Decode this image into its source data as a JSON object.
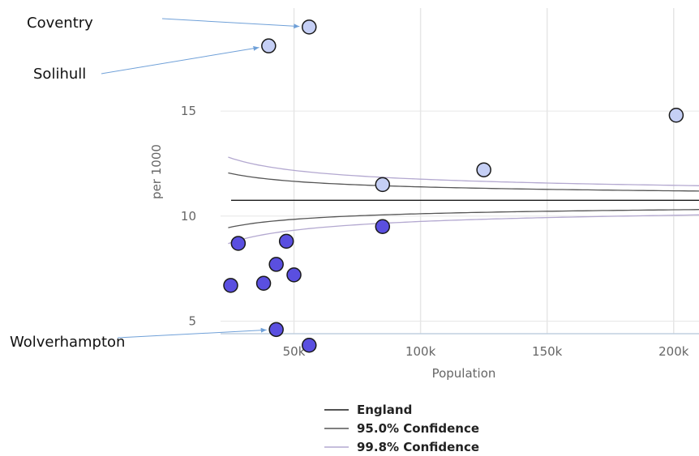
{
  "chart_data": {
    "type": "scatter",
    "xlabel": "Population",
    "ylabel": "per 1000",
    "x_ticks": [
      {
        "value": 50000,
        "label": "50k"
      },
      {
        "value": 100000,
        "label": "100k"
      },
      {
        "value": 150000,
        "label": "150k"
      },
      {
        "value": 200000,
        "label": "200k"
      }
    ],
    "y_ticks": [
      {
        "value": 5,
        "label": "5"
      },
      {
        "value": 10,
        "label": "10"
      },
      {
        "value": 15,
        "label": "15"
      }
    ],
    "xlim": [
      21000,
      210000
    ],
    "ylim": [
      4.4,
      19.9
    ],
    "grid": "vertical",
    "england_value": 10.75,
    "points": [
      {
        "x": 56000,
        "y": 19.0,
        "label": "Coventry",
        "group": "above"
      },
      {
        "x": 40000,
        "y": 18.1,
        "label": "Solihull",
        "group": "above"
      },
      {
        "x": 201000,
        "y": 14.8,
        "label": "",
        "group": "above"
      },
      {
        "x": 125000,
        "y": 12.2,
        "label": "",
        "group": "above"
      },
      {
        "x": 85000,
        "y": 11.5,
        "label": "",
        "group": "similar"
      },
      {
        "x": 85000,
        "y": 9.5,
        "label": "",
        "group": "below"
      },
      {
        "x": 47000,
        "y": 8.8,
        "label": "",
        "group": "below"
      },
      {
        "x": 28000,
        "y": 8.7,
        "label": "",
        "group": "below"
      },
      {
        "x": 43000,
        "y": 7.7,
        "label": "",
        "group": "below"
      },
      {
        "x": 50000,
        "y": 7.2,
        "label": "",
        "group": "below"
      },
      {
        "x": 38000,
        "y": 6.8,
        "label": "",
        "group": "below"
      },
      {
        "x": 25000,
        "y": 6.7,
        "label": "",
        "group": "below"
      },
      {
        "x": 43000,
        "y": 4.6,
        "label": "Wolverhampton",
        "group": "below"
      },
      {
        "x": 56000,
        "y": 3.85,
        "label": "",
        "group": "below"
      }
    ],
    "legend": [
      {
        "key": "england",
        "label": "England"
      },
      {
        "key": "ci95",
        "label": "95.0% Confidence"
      },
      {
        "key": "ci998",
        "label": "99.8% Confidence"
      }
    ],
    "legend_position": "bottom-center",
    "colors": {
      "above": "#c5cff5",
      "similar": "#c5cff5",
      "below": "#5a4fe0",
      "point_stroke": "#1a1a1a",
      "england": "#1a1a1a",
      "ci95": "#555555",
      "ci998": "#b3a8d0",
      "grid": "#e6e6e6",
      "axis": "#c0d0e0",
      "arrow": "#6fa0d8"
    }
  }
}
